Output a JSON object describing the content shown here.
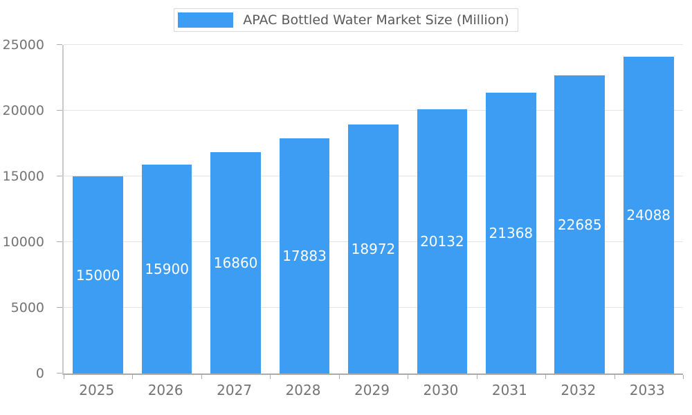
{
  "chart_data": {
    "type": "bar",
    "title": "APAC Bottled Water Market Size (Million)",
    "legend_label": "APAC Bottled Water Market Size (Million)",
    "legend_position": "top",
    "categories": [
      "2025",
      "2026",
      "2027",
      "2028",
      "2029",
      "2030",
      "2031",
      "2032",
      "2033"
    ],
    "values": [
      15000,
      15900,
      16860,
      17883,
      18972,
      20132,
      21368,
      22685,
      24088
    ],
    "xlabel": "",
    "ylabel": "",
    "ylim": [
      0,
      25000
    ],
    "yticks": [
      0,
      5000,
      10000,
      15000,
      20000,
      25000
    ],
    "grid": true,
    "bar_color": "#3d9df3",
    "value_label_color": "#ffffff",
    "axis_label_color": "#737373"
  }
}
